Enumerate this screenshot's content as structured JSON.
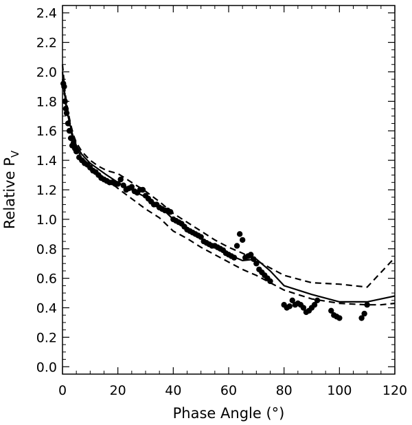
{
  "chart_data": {
    "type": "scatter",
    "title": "",
    "xlabel": "Phase Angle (°)",
    "ylabel_main": "Relative P",
    "ylabel_sub": "V",
    "xlim": [
      0,
      120
    ],
    "ylim": [
      -0.05,
      2.45
    ],
    "xticks": [
      0,
      20,
      40,
      60,
      80,
      100,
      120
    ],
    "yticks": [
      0.0,
      0.2,
      0.4,
      0.6,
      0.8,
      1.0,
      1.2,
      1.4,
      1.6,
      1.8,
      2.0,
      2.2,
      2.4
    ],
    "grid": false,
    "legend": "none",
    "series": [
      {
        "style": "points",
        "x": [
          0.3,
          0.6,
          0.9,
          1.2,
          1.5,
          2,
          2.5,
          3,
          3.5,
          4,
          4.5,
          5,
          6,
          7,
          8,
          9,
          10,
          11,
          12,
          13,
          14,
          15,
          16,
          17,
          18,
          19,
          20,
          21,
          22,
          23,
          24,
          25,
          26,
          27,
          28,
          29,
          30,
          31,
          32,
          33,
          34,
          35,
          36,
          37,
          38,
          39,
          40,
          41,
          42,
          43,
          44,
          45,
          46,
          47,
          48,
          49,
          50,
          51,
          52,
          53,
          54,
          55,
          56,
          57,
          58,
          59,
          60,
          61,
          62,
          63,
          64,
          65,
          66,
          67,
          68,
          69,
          70,
          71,
          72,
          73,
          74,
          75,
          80,
          81,
          82,
          83,
          84,
          85,
          86,
          87,
          88,
          89,
          90,
          91,
          92,
          97,
          98,
          99,
          100,
          108,
          109,
          110
        ],
        "y": [
          1.92,
          1.9,
          1.8,
          1.75,
          1.72,
          1.65,
          1.6,
          1.55,
          1.5,
          1.52,
          1.48,
          1.46,
          1.42,
          1.4,
          1.38,
          1.37,
          1.35,
          1.33,
          1.32,
          1.3,
          1.28,
          1.27,
          1.26,
          1.25,
          1.25,
          1.24,
          1.24,
          1.27,
          1.23,
          1.2,
          1.21,
          1.22,
          1.19,
          1.18,
          1.2,
          1.2,
          1.16,
          1.14,
          1.12,
          1.1,
          1.1,
          1.08,
          1.07,
          1.06,
          1.06,
          1.05,
          1.0,
          0.99,
          0.98,
          0.97,
          0.95,
          0.93,
          0.92,
          0.91,
          0.9,
          0.89,
          0.88,
          0.85,
          0.84,
          0.83,
          0.82,
          0.82,
          0.81,
          0.8,
          0.79,
          0.77,
          0.76,
          0.75,
          0.74,
          0.82,
          0.9,
          0.86,
          0.74,
          0.75,
          0.76,
          0.73,
          0.7,
          0.66,
          0.64,
          0.62,
          0.6,
          0.58,
          0.42,
          0.4,
          0.41,
          0.45,
          0.42,
          0.43,
          0.42,
          0.4,
          0.37,
          0.38,
          0.4,
          0.42,
          0.45,
          0.38,
          0.35,
          0.34,
          0.33,
          0.33,
          0.36,
          0.42
        ]
      },
      {
        "style": "solid",
        "x": [
          0,
          1,
          2,
          3,
          4,
          5,
          7,
          10,
          13,
          16,
          20,
          25,
          30,
          35,
          40,
          45,
          50,
          55,
          60,
          65,
          70,
          75,
          80,
          90,
          100,
          105,
          110,
          115,
          120
        ],
        "y": [
          2.0,
          1.82,
          1.7,
          1.62,
          1.55,
          1.5,
          1.44,
          1.38,
          1.34,
          1.3,
          1.25,
          1.2,
          1.15,
          1.09,
          1.0,
          0.94,
          0.87,
          0.81,
          0.76,
          0.72,
          0.73,
          0.65,
          0.55,
          0.49,
          0.44,
          0.44,
          0.44,
          0.46,
          0.48
        ]
      },
      {
        "style": "dashed",
        "x": [
          0,
          1,
          2,
          3,
          4,
          5,
          7,
          10,
          13,
          16,
          20,
          25,
          30,
          35,
          40,
          45,
          50,
          55,
          60,
          65,
          70,
          75,
          80,
          90,
          100,
          110,
          115,
          120
        ],
        "y": [
          2.05,
          1.85,
          1.73,
          1.64,
          1.57,
          1.52,
          1.46,
          1.4,
          1.36,
          1.33,
          1.31,
          1.25,
          1.19,
          1.12,
          1.04,
          0.98,
          0.92,
          0.86,
          0.81,
          0.77,
          0.72,
          0.67,
          0.62,
          0.57,
          0.56,
          0.54,
          0.64,
          0.74
        ]
      },
      {
        "style": "dashed",
        "x": [
          0,
          1,
          2,
          3,
          4,
          5,
          7,
          10,
          13,
          16,
          20,
          25,
          30,
          35,
          40,
          45,
          50,
          55,
          60,
          65,
          70,
          75,
          80,
          90,
          100,
          110,
          115,
          120
        ],
        "y": [
          1.95,
          1.8,
          1.68,
          1.6,
          1.53,
          1.48,
          1.42,
          1.36,
          1.31,
          1.27,
          1.21,
          1.14,
          1.07,
          1.01,
          0.92,
          0.87,
          0.81,
          0.76,
          0.71,
          0.66,
          0.62,
          0.57,
          0.52,
          0.46,
          0.43,
          0.42,
          0.42,
          0.43
        ]
      }
    ]
  }
}
